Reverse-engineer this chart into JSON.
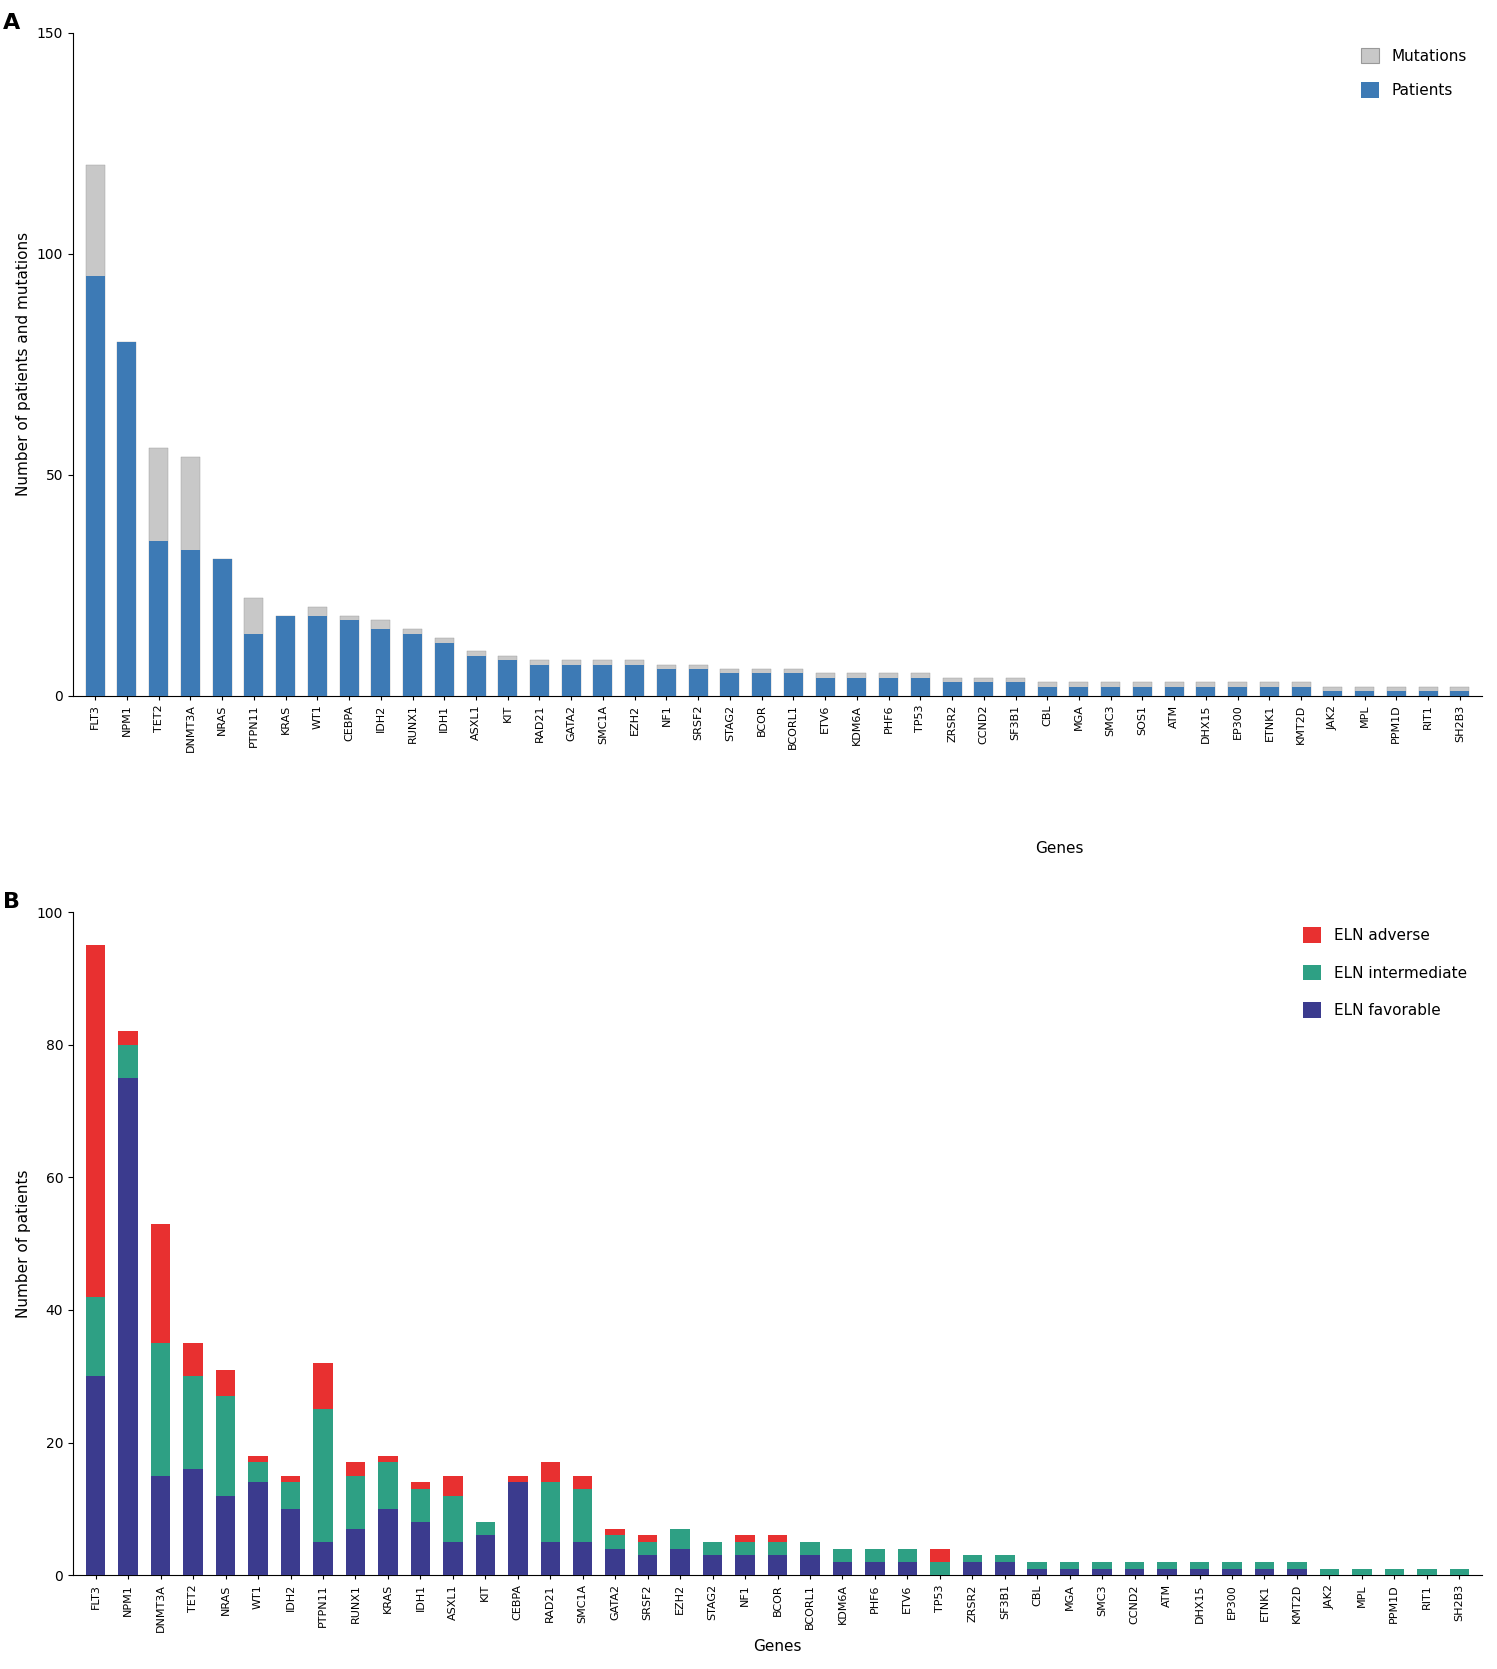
{
  "genes_A": [
    "FLT3",
    "NPM1",
    "TET2",
    "DNMT3A",
    "NRAS",
    "PTPN11",
    "KRAS",
    "WT1",
    "CEBPA",
    "IDH2",
    "RUNX1",
    "IDH1",
    "ASXL1",
    "KIT",
    "RAD21",
    "GATA2",
    "SMC1A",
    "EZH2",
    "NF1",
    "SRSF2",
    "STAG2",
    "BCOR",
    "BCORL1",
    "ETV6",
    "KDM6A",
    "PHF6",
    "TP53",
    "ZRSR2",
    "CCND2",
    "SF3B1",
    "CBL",
    "MGA",
    "SMC3",
    "SOS1",
    "ATM",
    "DHX15",
    "EP300",
    "ETNK1",
    "KMT2D",
    "JAK2",
    "MPL",
    "PPM1D",
    "RIT1",
    "SH2B3"
  ],
  "patients_A": [
    95,
    80,
    35,
    33,
    31,
    14,
    18,
    18,
    17,
    15,
    14,
    12,
    9,
    8,
    7,
    7,
    7,
    7,
    6,
    6,
    5,
    5,
    5,
    4,
    4,
    4,
    4,
    3,
    3,
    3,
    2,
    2,
    2,
    2,
    2,
    2,
    2,
    2,
    2,
    1,
    1,
    1,
    1,
    1
  ],
  "mutations_A_total": [
    120,
    80,
    56,
    54,
    31,
    22,
    18,
    20,
    18,
    17,
    15,
    13,
    10,
    9,
    8,
    8,
    8,
    8,
    7,
    7,
    6,
    6,
    6,
    5,
    5,
    5,
    5,
    4,
    4,
    4,
    3,
    3,
    3,
    3,
    3,
    3,
    3,
    3,
    3,
    2,
    2,
    2,
    2,
    2
  ],
  "genes_B": [
    "FLT3",
    "NPM1",
    "DNMT3A",
    "TET2",
    "NRAS",
    "WT1",
    "IDH2",
    "PTPN11",
    "RUNX1",
    "KRAS",
    "IDH1",
    "ASXL1",
    "KIT",
    "CEBPA",
    "RAD21",
    "SMC1A",
    "GATA2",
    "SRSF2",
    "EZH2",
    "STAG2",
    "NF1",
    "BCOR",
    "BCORL1",
    "KDM6A",
    "PHF6",
    "ETV6",
    "TP53",
    "ZRSR2",
    "SF3B1",
    "CBL",
    "MGA",
    "SMC3",
    "CCND2",
    "ATM",
    "DHX15",
    "EP300",
    "ETNK1",
    "KMT2D",
    "JAK2",
    "MPL",
    "PPM1D",
    "RIT1",
    "SH2B3"
  ],
  "favorable_B": [
    30,
    75,
    15,
    16,
    12,
    14,
    10,
    5,
    7,
    10,
    8,
    5,
    6,
    14,
    5,
    5,
    4,
    3,
    4,
    3,
    3,
    3,
    3,
    2,
    2,
    2,
    0,
    2,
    2,
    1,
    1,
    1,
    1,
    1,
    1,
    1,
    1,
    1,
    0,
    0,
    0,
    0,
    0
  ],
  "intermediate_B": [
    12,
    5,
    20,
    14,
    15,
    3,
    4,
    20,
    8,
    7,
    5,
    7,
    2,
    0,
    9,
    8,
    2,
    2,
    3,
    2,
    2,
    2,
    2,
    2,
    2,
    2,
    2,
    1,
    1,
    1,
    1,
    1,
    1,
    1,
    1,
    1,
    1,
    1,
    1,
    1,
    1,
    1,
    1
  ],
  "adverse_B": [
    53,
    2,
    18,
    5,
    4,
    1,
    1,
    7,
    2,
    1,
    1,
    3,
    0,
    1,
    3,
    2,
    1,
    1,
    0,
    0,
    1,
    1,
    0,
    0,
    0,
    0,
    2,
    0,
    0,
    0,
    0,
    0,
    0,
    0,
    0,
    0,
    0,
    0,
    0,
    0,
    0,
    0,
    0
  ],
  "color_patients": "#3D7AB5",
  "color_mutations": "#C8C8C8",
  "color_favorable": "#3B3B8E",
  "color_intermediate": "#2EA084",
  "color_adverse": "#E83030",
  "ylim_A": [
    0,
    150
  ],
  "ylim_B": [
    0,
    100
  ],
  "yticks_A": [
    0,
    50,
    100,
    150
  ],
  "yticks_B": [
    0,
    20,
    40,
    60,
    80,
    100
  ],
  "ylabel_A": "Number of patients and mutations",
  "ylabel_B": "Number of patients",
  "xlabel": "Genes",
  "label_A": "A",
  "label_B": "B"
}
